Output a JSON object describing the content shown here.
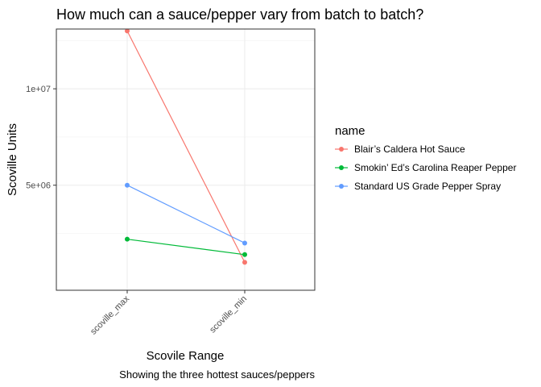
{
  "chart_data": {
    "type": "line",
    "title": "How much can a sauce/pepper vary from batch to batch?",
    "caption": "Showing the three hottest sauces/peppers",
    "xlabel": "Scovile Range",
    "ylabel": "Scoville Units",
    "categories": [
      "scoville_max",
      "scoville_min"
    ],
    "yticks": [
      {
        "value": 5000000,
        "label": "5e+06"
      },
      {
        "value": 10000000,
        "label": "1e+07"
      }
    ],
    "ylim": [
      -448000,
      13100000
    ],
    "grid": true,
    "legend": {
      "title": "name",
      "position": "right"
    },
    "series": [
      {
        "name": "Blair’s Caldera Hot Sauce",
        "color": "#F8766D",
        "values": [
          13000000,
          1000000
        ]
      },
      {
        "name": "Smokin’ Ed’s Carolina Reaper Pepper",
        "color": "#00BA38",
        "values": [
          2200000,
          1400000
        ]
      },
      {
        "name": "Standard US Grade Pepper Spray",
        "color": "#619CFF",
        "values": [
          5000000,
          2000000
        ]
      }
    ]
  }
}
